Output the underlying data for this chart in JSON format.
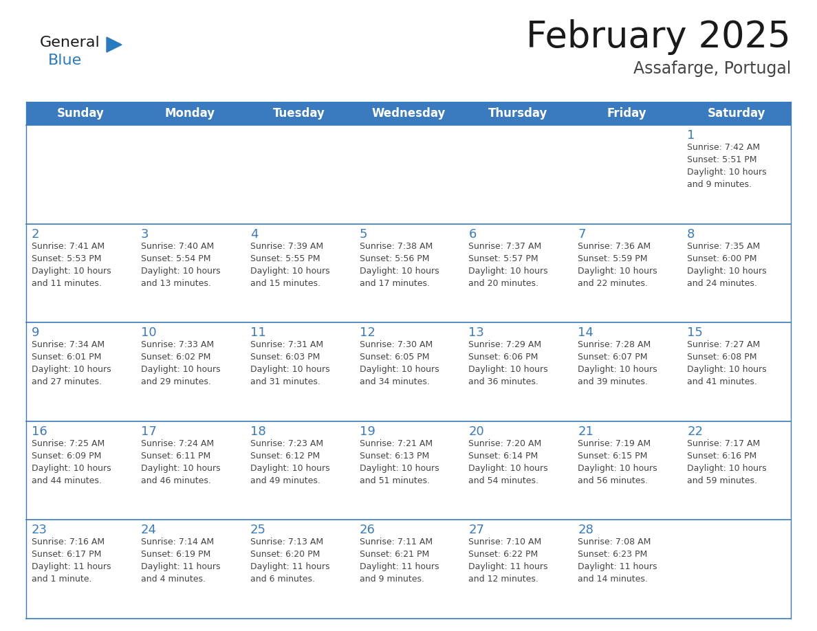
{
  "title": "February 2025",
  "subtitle": "Assafarge, Portugal",
  "header_bg_color": "#3a7abf",
  "header_text_color": "#ffffff",
  "border_color": "#3a7abf",
  "day_headers": [
    "Sunday",
    "Monday",
    "Tuesday",
    "Wednesday",
    "Thursday",
    "Friday",
    "Saturday"
  ],
  "title_color": "#1a1a1a",
  "subtitle_color": "#444444",
  "day_num_color": "#3a7abf",
  "cell_text_color": "#444444",
  "logo_general_color": "#1a1a1a",
  "logo_blue_color": "#2a7abf",
  "weeks": [
    [
      {
        "day": null,
        "info": ""
      },
      {
        "day": null,
        "info": ""
      },
      {
        "day": null,
        "info": ""
      },
      {
        "day": null,
        "info": ""
      },
      {
        "day": null,
        "info": ""
      },
      {
        "day": null,
        "info": ""
      },
      {
        "day": 1,
        "info": "Sunrise: 7:42 AM\nSunset: 5:51 PM\nDaylight: 10 hours\nand 9 minutes."
      }
    ],
    [
      {
        "day": 2,
        "info": "Sunrise: 7:41 AM\nSunset: 5:53 PM\nDaylight: 10 hours\nand 11 minutes."
      },
      {
        "day": 3,
        "info": "Sunrise: 7:40 AM\nSunset: 5:54 PM\nDaylight: 10 hours\nand 13 minutes."
      },
      {
        "day": 4,
        "info": "Sunrise: 7:39 AM\nSunset: 5:55 PM\nDaylight: 10 hours\nand 15 minutes."
      },
      {
        "day": 5,
        "info": "Sunrise: 7:38 AM\nSunset: 5:56 PM\nDaylight: 10 hours\nand 17 minutes."
      },
      {
        "day": 6,
        "info": "Sunrise: 7:37 AM\nSunset: 5:57 PM\nDaylight: 10 hours\nand 20 minutes."
      },
      {
        "day": 7,
        "info": "Sunrise: 7:36 AM\nSunset: 5:59 PM\nDaylight: 10 hours\nand 22 minutes."
      },
      {
        "day": 8,
        "info": "Sunrise: 7:35 AM\nSunset: 6:00 PM\nDaylight: 10 hours\nand 24 minutes."
      }
    ],
    [
      {
        "day": 9,
        "info": "Sunrise: 7:34 AM\nSunset: 6:01 PM\nDaylight: 10 hours\nand 27 minutes."
      },
      {
        "day": 10,
        "info": "Sunrise: 7:33 AM\nSunset: 6:02 PM\nDaylight: 10 hours\nand 29 minutes."
      },
      {
        "day": 11,
        "info": "Sunrise: 7:31 AM\nSunset: 6:03 PM\nDaylight: 10 hours\nand 31 minutes."
      },
      {
        "day": 12,
        "info": "Sunrise: 7:30 AM\nSunset: 6:05 PM\nDaylight: 10 hours\nand 34 minutes."
      },
      {
        "day": 13,
        "info": "Sunrise: 7:29 AM\nSunset: 6:06 PM\nDaylight: 10 hours\nand 36 minutes."
      },
      {
        "day": 14,
        "info": "Sunrise: 7:28 AM\nSunset: 6:07 PM\nDaylight: 10 hours\nand 39 minutes."
      },
      {
        "day": 15,
        "info": "Sunrise: 7:27 AM\nSunset: 6:08 PM\nDaylight: 10 hours\nand 41 minutes."
      }
    ],
    [
      {
        "day": 16,
        "info": "Sunrise: 7:25 AM\nSunset: 6:09 PM\nDaylight: 10 hours\nand 44 minutes."
      },
      {
        "day": 17,
        "info": "Sunrise: 7:24 AM\nSunset: 6:11 PM\nDaylight: 10 hours\nand 46 minutes."
      },
      {
        "day": 18,
        "info": "Sunrise: 7:23 AM\nSunset: 6:12 PM\nDaylight: 10 hours\nand 49 minutes."
      },
      {
        "day": 19,
        "info": "Sunrise: 7:21 AM\nSunset: 6:13 PM\nDaylight: 10 hours\nand 51 minutes."
      },
      {
        "day": 20,
        "info": "Sunrise: 7:20 AM\nSunset: 6:14 PM\nDaylight: 10 hours\nand 54 minutes."
      },
      {
        "day": 21,
        "info": "Sunrise: 7:19 AM\nSunset: 6:15 PM\nDaylight: 10 hours\nand 56 minutes."
      },
      {
        "day": 22,
        "info": "Sunrise: 7:17 AM\nSunset: 6:16 PM\nDaylight: 10 hours\nand 59 minutes."
      }
    ],
    [
      {
        "day": 23,
        "info": "Sunrise: 7:16 AM\nSunset: 6:17 PM\nDaylight: 11 hours\nand 1 minute."
      },
      {
        "day": 24,
        "info": "Sunrise: 7:14 AM\nSunset: 6:19 PM\nDaylight: 11 hours\nand 4 minutes."
      },
      {
        "day": 25,
        "info": "Sunrise: 7:13 AM\nSunset: 6:20 PM\nDaylight: 11 hours\nand 6 minutes."
      },
      {
        "day": 26,
        "info": "Sunrise: 7:11 AM\nSunset: 6:21 PM\nDaylight: 11 hours\nand 9 minutes."
      },
      {
        "day": 27,
        "info": "Sunrise: 7:10 AM\nSunset: 6:22 PM\nDaylight: 11 hours\nand 12 minutes."
      },
      {
        "day": 28,
        "info": "Sunrise: 7:08 AM\nSunset: 6:23 PM\nDaylight: 11 hours\nand 14 minutes."
      },
      {
        "day": null,
        "info": ""
      }
    ]
  ],
  "figwidth": 11.88,
  "figheight": 9.18,
  "dpi": 100
}
